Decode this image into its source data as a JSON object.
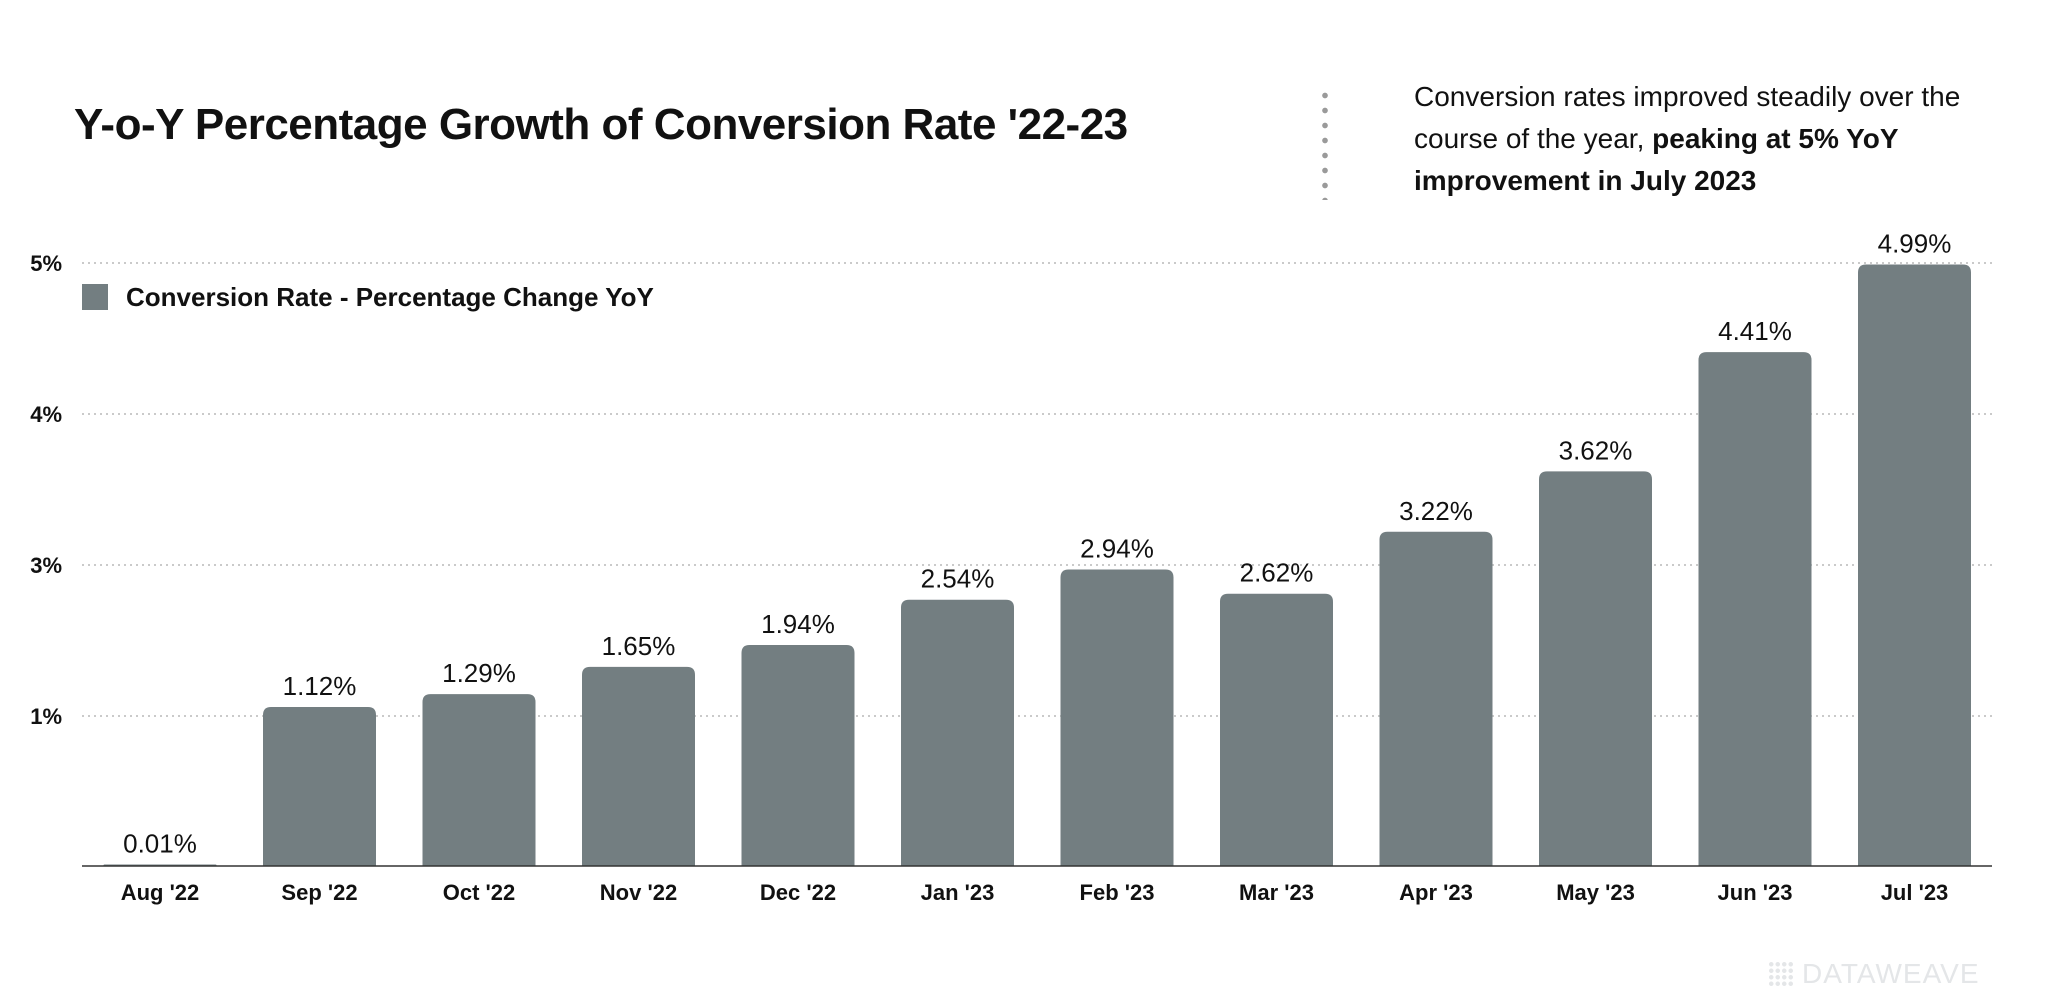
{
  "header": {
    "title": "Y-o-Y Percentage Growth of Conversion Rate '22-23"
  },
  "callout": {
    "text_regular": "Conversion rates improved steadily over the course of the year, ",
    "text_bold": "peaking at 5% YoY improvement in July 2023"
  },
  "brand": {
    "watermark": "DATAWEAVE"
  },
  "colors": {
    "bar": "#737e81",
    "grid": "#b8b8b8",
    "axis": "#333333",
    "text": "#111111"
  },
  "chart_data": {
    "type": "bar",
    "title": "Y-o-Y Percentage Growth of Conversion Rate '22-23",
    "xlabel": "",
    "ylabel": "",
    "categories": [
      "Aug '22",
      "Sep '22",
      "Oct '22",
      "Nov '22",
      "Dec '22",
      "Jan '23",
      "Feb '23",
      "Mar '23",
      "Apr '23",
      "May '23",
      "Jun '23",
      "Jul '23"
    ],
    "series": [
      {
        "name": "Conversion Rate - Percentage Change YoY",
        "values": [
          0.01,
          1.12,
          1.29,
          1.65,
          1.94,
          2.54,
          2.94,
          2.62,
          3.22,
          3.62,
          4.41,
          4.99
        ],
        "labels": [
          "0.01%",
          "1.12%",
          "1.29%",
          "1.65%",
          "1.94%",
          "2.54%",
          "2.94%",
          "2.62%",
          "3.22%",
          "3.62%",
          "4.41%",
          "4.99%"
        ]
      }
    ],
    "ytick_labels": [
      "1%",
      "3%",
      "4%",
      "5%"
    ],
    "legend_position": "top-left",
    "grid": true
  }
}
